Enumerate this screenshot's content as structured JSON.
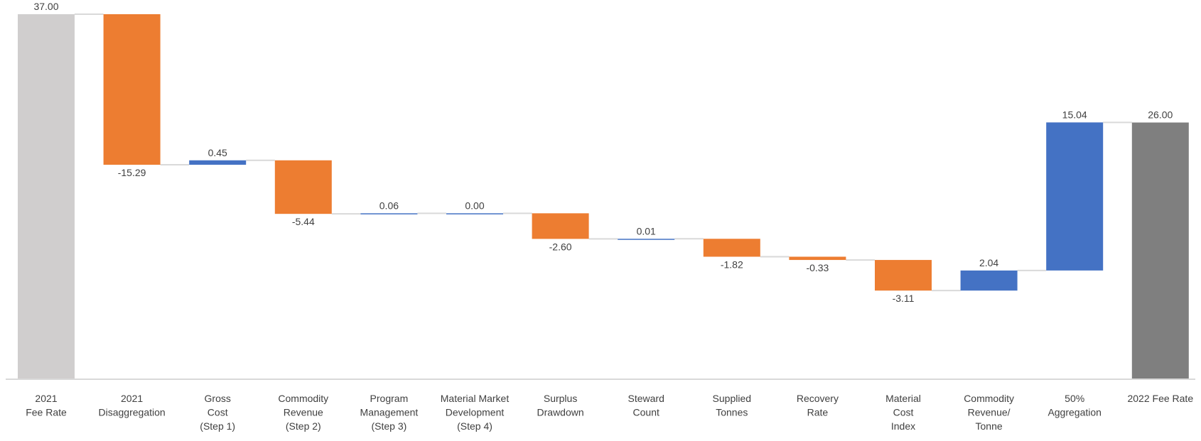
{
  "chart_data": {
    "type": "waterfall",
    "title": "",
    "xlabel": "",
    "ylabel": "",
    "ylim": [
      0,
      37.5
    ],
    "grid": false,
    "legend": "none",
    "colors": {
      "start_total": "#d0cece",
      "end_total": "#7f7f7f",
      "increase": "#4472c4",
      "decrease": "#ed7d31",
      "connector": "#d9d9d9",
      "axis": "#d9d9d9"
    },
    "bars": [
      {
        "category": [
          "2021",
          "Fee Rate"
        ],
        "value": 37.0,
        "label": "37.00",
        "kind": "total-start"
      },
      {
        "category": [
          "2021",
          "Disaggregation"
        ],
        "value": -15.29,
        "label": "-15.29",
        "kind": "decrease"
      },
      {
        "category": [
          "Gross",
          "Cost",
          "(Step 1)"
        ],
        "value": 0.45,
        "label": "0.45",
        "kind": "increase"
      },
      {
        "category": [
          "Commodity",
          "Revenue",
          "(Step 2)"
        ],
        "value": -5.44,
        "label": "-5.44",
        "kind": "decrease"
      },
      {
        "category": [
          "Program",
          "Management",
          "(Step 3)"
        ],
        "value": 0.06,
        "label": "0.06",
        "kind": "increase"
      },
      {
        "category": [
          "Material Market",
          "Development",
          "(Step 4)"
        ],
        "value": 0.0,
        "label": "0.00",
        "kind": "increase"
      },
      {
        "category": [
          "Surplus",
          "Drawdown"
        ],
        "value": -2.6,
        "label": "-2.60",
        "kind": "decrease"
      },
      {
        "category": [
          "Steward",
          "Count"
        ],
        "value": 0.01,
        "label": "0.01",
        "kind": "increase"
      },
      {
        "category": [
          "Supplied",
          "Tonnes"
        ],
        "value": -1.82,
        "label": "-1.82",
        "kind": "decrease"
      },
      {
        "category": [
          "Recovery",
          "Rate"
        ],
        "value": -0.33,
        "label": "-0.33",
        "kind": "decrease"
      },
      {
        "category": [
          "Material",
          "Cost",
          "Index"
        ],
        "value": -3.11,
        "label": "-3.11",
        "kind": "decrease"
      },
      {
        "category": [
          "Commodity",
          "Revenue/",
          "Tonne"
        ],
        "value": 2.04,
        "label": "2.04",
        "kind": "increase"
      },
      {
        "category": [
          "50%",
          "Aggregation"
        ],
        "value": 15.04,
        "label": "15.04",
        "kind": "increase"
      },
      {
        "category": [
          "2022 Fee Rate"
        ],
        "value": 26.0,
        "label": "26.00",
        "kind": "total-end"
      }
    ]
  }
}
